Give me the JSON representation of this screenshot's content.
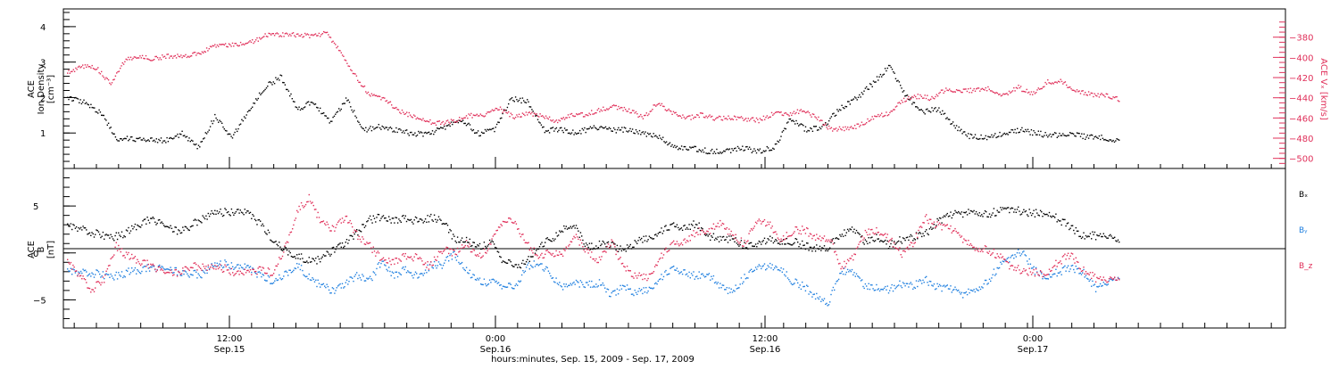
{
  "chart_data": [
    {
      "type": "scatter",
      "panel": "top",
      "ylabel_left": [
        "ACE",
        "Ion Density",
        "[cm⁻³]"
      ],
      "ylabel_right": "ACE Vₓ [km/s]",
      "ylim_left": [
        0,
        4.5
      ],
      "yticks_left": [
        1,
        2,
        3,
        4
      ],
      "ylim_right": [
        -510,
        -352
      ],
      "yticks_right": [
        -380,
        -400,
        -420,
        -440,
        -460,
        -480,
        -500
      ],
      "colors": {
        "density": "#000000",
        "velocity": "#e0305a"
      },
      "series": [
        {
          "name": "Ion Density",
          "axis": "left",
          "color": "#000000",
          "points": [
            [
              5,
              2.0
            ],
            [
              6,
              1.9
            ],
            [
              7,
              1.6
            ],
            [
              8,
              0.85
            ],
            [
              9,
              0.85
            ],
            [
              10,
              0.85
            ],
            [
              11,
              0.8
            ],
            [
              12,
              1.0
            ],
            [
              13,
              0.6
            ],
            [
              14,
              1.5
            ],
            [
              15,
              0.9
            ],
            [
              16,
              1.6
            ],
            [
              17,
              2.3
            ],
            [
              18,
              2.6
            ],
            [
              19,
              1.7
            ],
            [
              20,
              1.9
            ],
            [
              21,
              1.3
            ],
            [
              22,
              2.0
            ],
            [
              23,
              1.1
            ],
            [
              24,
              1.2
            ],
            [
              25,
              1.1
            ],
            [
              26,
              1.0
            ],
            [
              27,
              1.0
            ],
            [
              28,
              1.2
            ],
            [
              29,
              1.4
            ],
            [
              30,
              1.0
            ],
            [
              31,
              1.1
            ],
            [
              32,
              2.0
            ],
            [
              33,
              1.9
            ],
            [
              34,
              1.1
            ],
            [
              35,
              1.1
            ],
            [
              36,
              1.0
            ],
            [
              37,
              1.2
            ],
            [
              38,
              1.1
            ],
            [
              39,
              1.1
            ],
            [
              40,
              1.0
            ],
            [
              41,
              0.9
            ],
            [
              42,
              0.6
            ],
            [
              43,
              0.6
            ],
            [
              44,
              0.5
            ],
            [
              45,
              0.5
            ],
            [
              46,
              0.6
            ],
            [
              47,
              0.5
            ],
            [
              48,
              0.6
            ],
            [
              49,
              1.4
            ],
            [
              50,
              1.1
            ],
            [
              51,
              1.2
            ],
            [
              52,
              1.7
            ],
            [
              53,
              2.0
            ],
            [
              54,
              2.4
            ],
            [
              55,
              2.9
            ],
            [
              56,
              2.1
            ],
            [
              57,
              1.6
            ],
            [
              58,
              1.7
            ],
            [
              59,
              1.2
            ],
            [
              60,
              0.9
            ],
            [
              61,
              0.9
            ],
            [
              62,
              1.0
            ],
            [
              63,
              1.1
            ],
            [
              64,
              1.0
            ],
            [
              65,
              0.95
            ],
            [
              66,
              1.0
            ],
            [
              67,
              0.9
            ],
            [
              68,
              0.9
            ],
            [
              69,
              0.8
            ]
          ]
        },
        {
          "name": "Vₓ",
          "axis": "right",
          "color": "#e0305a",
          "points": [
            [
              0,
              -415
            ],
            [
              1,
              -408
            ],
            [
              2,
              -410
            ],
            [
              3,
              -425
            ],
            [
              4,
              -402
            ],
            [
              5,
              -399
            ],
            [
              6,
              -401
            ],
            [
              7,
              -398
            ],
            [
              8,
              -398
            ],
            [
              9,
              -396
            ],
            [
              10,
              -389
            ],
            [
              11,
              -387
            ],
            [
              12,
              -386
            ],
            [
              13,
              -383
            ],
            [
              14,
              -376
            ],
            [
              15,
              -377
            ],
            [
              16,
              -377
            ],
            [
              17,
              -378
            ],
            [
              18,
              -375
            ],
            [
              19,
              -395
            ],
            [
              20,
              -418
            ],
            [
              21,
              -437
            ],
            [
              22,
              -441
            ],
            [
              23,
              -452
            ],
            [
              24,
              -458
            ],
            [
              25,
              -463
            ],
            [
              26,
              -465
            ],
            [
              27,
              -462
            ],
            [
              28,
              -457
            ],
            [
              29,
              -456
            ],
            [
              30,
              -450
            ],
            [
              31,
              -459
            ],
            [
              32,
              -455
            ],
            [
              33,
              -458
            ],
            [
              34,
              -463
            ],
            [
              35,
              -456
            ],
            [
              36,
              -456
            ],
            [
              37,
              -451
            ],
            [
              38,
              -448
            ],
            [
              39,
              -452
            ],
            [
              40,
              -459
            ],
            [
              41,
              -444
            ],
            [
              42,
              -455
            ],
            [
              43,
              -460
            ],
            [
              44,
              -456
            ],
            [
              45,
              -460
            ],
            [
              46,
              -459
            ],
            [
              47,
              -460
            ],
            [
              48,
              -462
            ],
            [
              49,
              -455
            ],
            [
              50,
              -456
            ],
            [
              51,
              -452
            ],
            [
              52,
              -459
            ],
            [
              53,
              -471
            ],
            [
              54,
              -470
            ],
            [
              55,
              -467
            ],
            [
              56,
              -458
            ],
            [
              57,
              -455
            ],
            [
              58,
              -442
            ],
            [
              59,
              -438
            ],
            [
              60,
              -440
            ],
            [
              61,
              -431
            ],
            [
              62,
              -433
            ],
            [
              63,
              -432
            ],
            [
              64,
              -430
            ],
            [
              65,
              -437
            ],
            [
              66,
              -429
            ],
            [
              67,
              -436
            ],
            [
              68,
              -424
            ],
            [
              69,
              -423
            ],
            [
              70,
              -433
            ],
            [
              71,
              -436
            ],
            [
              72,
              -437
            ],
            [
              73,
              -441
            ]
          ]
        }
      ]
    },
    {
      "type": "scatter",
      "panel": "bottom",
      "ylabel": [
        "ACE",
        "B",
        "[nT]"
      ],
      "ylim": [
        -8,
        9
      ],
      "yticks": [
        5,
        0,
        -5
      ],
      "zero_line": true,
      "colors": {
        "Bx": "#000000",
        "By": "#1f7fdf",
        "Bz": "#e0305a"
      },
      "series": [
        {
          "name": "Bₓ",
          "color": "#000000",
          "values": [
            2.8,
            2.6,
            2.2,
            1.9,
            1.8,
            2.3,
            3.2,
            3.6,
            3.2,
            2.4,
            2.8,
            3.6,
            4.2,
            4.4,
            4.3,
            4.3,
            3.1,
            1.4,
            0.4,
            -0.3,
            -0.8,
            -0.6,
            0.3,
            1.0,
            2.3,
            3.6,
            3.9,
            3.6,
            3.7,
            3.4,
            3.8,
            3.5,
            1.5,
            1.4,
            0.7,
            1.2,
            -0.7,
            -1.3,
            -0.9,
            0.8,
            1.5,
            2.6,
            2.9,
            0.6,
            0.9,
            0.9,
            0.4,
            1.2,
            1.6,
            2.2,
            3.1,
            2.8,
            3.2,
            1.8,
            1.6,
            1.5,
            0.8,
            1.1,
            1.5,
            1.1,
            1.3,
            0.8,
            0.6,
            0.7,
            2.2,
            2.5,
            1.3,
            1.8,
            0.9,
            1.5,
            1.8,
            2.1,
            3.4,
            4.2,
            4.3,
            4.5,
            4.2,
            4.5,
            4.6,
            4.5,
            4.3,
            4.2,
            3.7,
            2.7,
            1.8,
            1.9,
            2.0,
            1.0
          ]
        },
        {
          "name": "Bᵧ",
          "color": "#1f7fdf",
          "values": [
            -2.0,
            -2.1,
            -2.1,
            -2.3,
            -2.4,
            -2.0,
            -1.7,
            -1.6,
            -1.4,
            -1.9,
            -2.1,
            -2.3,
            -1.4,
            -1.1,
            -1.6,
            -1.5,
            -2.4,
            -3.0,
            -2.2,
            -1.2,
            -2.6,
            -3.4,
            -4.1,
            -3.3,
            -2.3,
            -2.9,
            -0.8,
            -2.3,
            -1.7,
            -2.6,
            -1.3,
            -1.2,
            -0.1,
            -1.8,
            -2.9,
            -3.1,
            -3.4,
            -3.6,
            -1.4,
            -1.0,
            -2.3,
            -3.6,
            -3.1,
            -3.4,
            -3.2,
            -4.5,
            -3.4,
            -4.2,
            -3.9,
            -2.8,
            -1.5,
            -1.9,
            -2.4,
            -2.3,
            -3.4,
            -4.2,
            -2.6,
            -1.3,
            -1.4,
            -1.7,
            -3.0,
            -3.6,
            -4.6,
            -5.2,
            -1.7,
            -2.1,
            -3.4,
            -3.6,
            -3.8,
            -3.2,
            -3.4,
            -2.8,
            -3.6,
            -3.6,
            -4.3,
            -3.9,
            -3.1,
            -1.5,
            -0.6,
            0.3,
            -1.8,
            -2.7,
            -1.9,
            -1.6,
            -2.0,
            -3.7,
            -3.0,
            -2.9
          ]
        },
        {
          "name": "B_z",
          "color": "#e0305a",
          "values": [
            -1.0,
            -2.4,
            -3.9,
            -2.8,
            0.8,
            -0.3,
            -0.8,
            -1.4,
            -1.8,
            -2.1,
            -1.4,
            -1.4,
            -1.6,
            -1.6,
            -2.3,
            -2.0,
            -1.7,
            -2.1,
            0.6,
            4.5,
            5.9,
            3.3,
            2.5,
            3.8,
            1.9,
            0.8,
            -0.6,
            -0.8,
            -0.3,
            -0.5,
            -1.4,
            0.4,
            0.0,
            1.1,
            -0.4,
            0.9,
            3.5,
            3.4,
            1.0,
            -0.3,
            0.1,
            0.0,
            1.9,
            0.1,
            -0.8,
            1.2,
            -1.3,
            -2.4,
            -2.6,
            -0.6,
            1.1,
            1.3,
            2.3,
            2.3,
            3.3,
            1.9,
            1.0,
            3.6,
            3.2,
            1.3,
            2.4,
            2.5,
            1.7,
            1.7,
            -1.3,
            -0.5,
            2.3,
            2.5,
            1.6,
            0.0,
            1.2,
            3.8,
            3.0,
            2.8,
            1.7,
            0.6,
            0.5,
            -0.2,
            -1.5,
            -1.8,
            -2.0,
            -2.3,
            -0.8,
            -0.2,
            -1.8,
            -2.6,
            -2.7,
            -3.0
          ]
        }
      ]
    }
  ],
  "x_axis": {
    "ticks": [
      {
        "time": "12:00",
        "date": "Sep.15"
      },
      {
        "time": "0:00",
        "date": "Sep.16"
      },
      {
        "time": "12:00",
        "date": "Sep.16"
      },
      {
        "time": "0:00",
        "date": "Sep.17"
      }
    ],
    "xlabel": "hours:minutes, Sep. 15, 2009 - Sep. 17, 2009"
  },
  "legend": {
    "bx": "Bₓ",
    "by": "Bᵧ",
    "bz": "B_z"
  }
}
